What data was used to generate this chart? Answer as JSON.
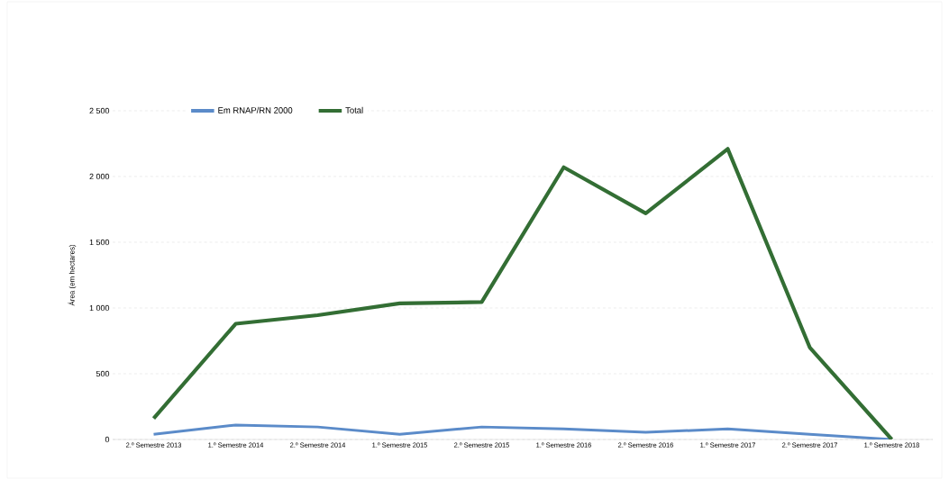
{
  "chart_data": {
    "type": "line",
    "ylabel": "Área (em hectares)",
    "categories": [
      "2.º Semestre 2013",
      "1.º Semestre 2014",
      "2.º Semestre 2014",
      "1.º Semestre 2015",
      "2.º Semestre 2015",
      "1.º Semestre 2016",
      "2.º Semestre 2016",
      "1.º Semestre 2017",
      "2.º Semestre 2017",
      "1.º Semestre 2018"
    ],
    "series": [
      {
        "name": "Em RNAP/RN 2000",
        "color": "#5b8bc9",
        "values": [
          40,
          110,
          95,
          40,
          95,
          80,
          55,
          80,
          40,
          0
        ]
      },
      {
        "name": "Total",
        "color": "#336e34",
        "values": [
          160,
          880,
          945,
          1035,
          1045,
          2070,
          1720,
          2210,
          700,
          0
        ]
      }
    ],
    "ylim": [
      0,
      2500
    ],
    "yticks": [
      0,
      500,
      {
        "value": 1000,
        "label": "1 000"
      },
      {
        "value": 1500,
        "label": "1 500"
      },
      {
        "value": 2000,
        "label": "2 000"
      },
      {
        "value": 2500,
        "label": "2 500"
      }
    ],
    "grid": "y",
    "legend": "top left",
    "marker": "none",
    "line_style": "solid"
  }
}
